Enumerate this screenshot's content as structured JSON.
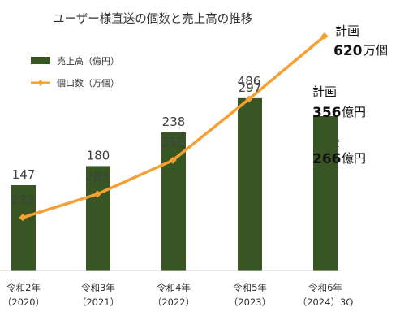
{
  "chart_data": {
    "type": "bar+line",
    "title": "ユーザー様直送の個数と売上高の推移",
    "categories": [
      {
        "line1": "令和2年",
        "line2": "（2020）"
      },
      {
        "line1": "令和3年",
        "line2": "（2021）"
      },
      {
        "line1": "令和4年",
        "line2": "（2022）"
      },
      {
        "line1": "令和5年",
        "line2": "（2023）"
      },
      {
        "line1": "令和6年",
        "line2": "（2024）3Q"
      }
    ],
    "series": [
      {
        "name": "売上高（億円）",
        "type": "bar",
        "color": "#375623",
        "values": [
          147,
          180,
          238,
          297,
          266
        ]
      },
      {
        "name": "個口数（万個）",
        "type": "line",
        "color": "#F4A033",
        "values": [
          233,
          283,
          355,
          486,
          620
        ]
      }
    ],
    "bar_scale_max": 420,
    "line_scale": [
      120,
      640
    ],
    "legend_position": "top-left",
    "grid": false,
    "annotations": {
      "line_plan": {
        "label": "計画",
        "value": "620",
        "unit": "万個"
      },
      "bar_plan": {
        "label": "計画",
        "value": "356",
        "unit": "億円"
      },
      "bar_actual": {
        "value": "266",
        "unit": "億円"
      }
    }
  }
}
